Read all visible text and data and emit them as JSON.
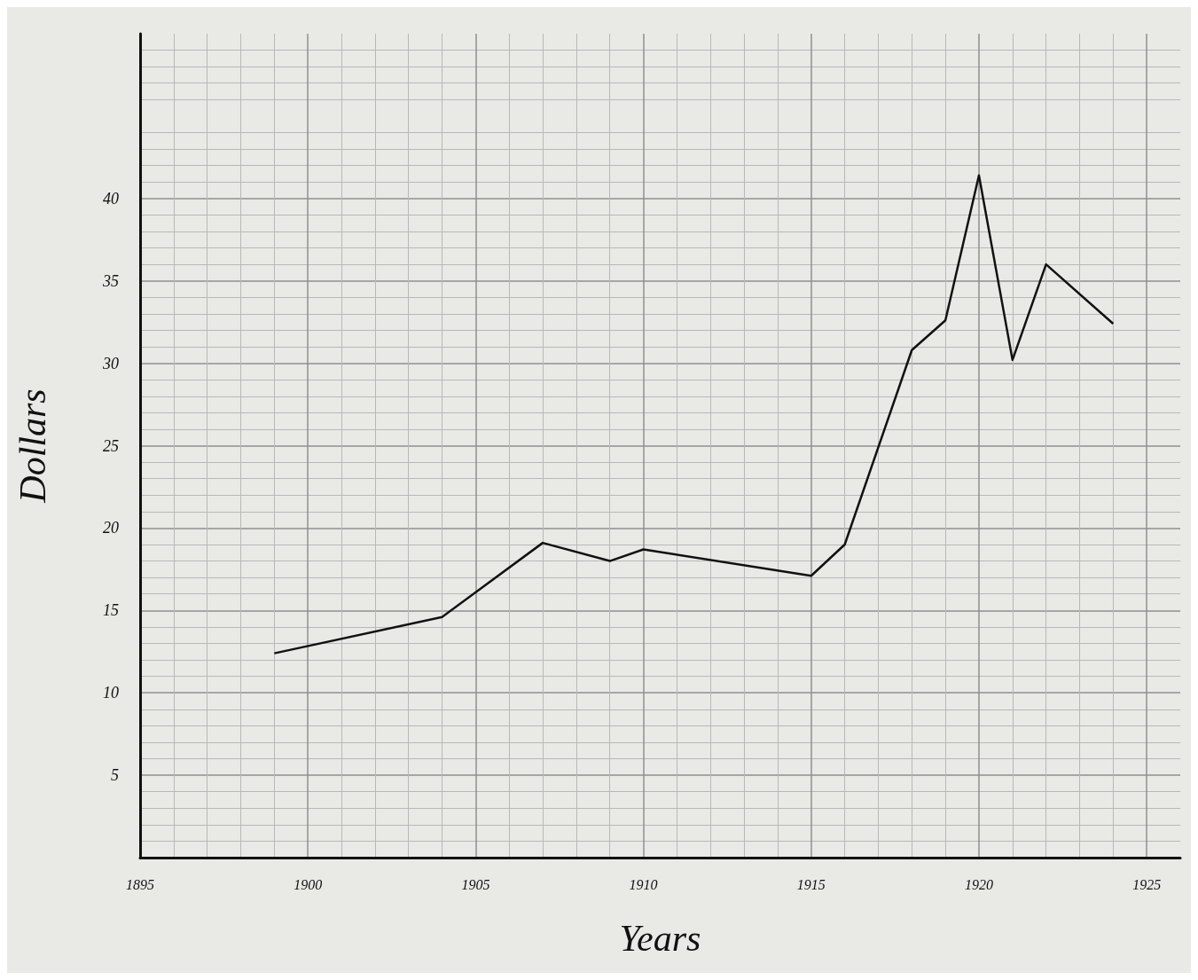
{
  "chart_data": {
    "type": "line",
    "xlabel": "Years",
    "ylabel": "Dollars",
    "x": [
      1899,
      1904,
      1907,
      1909,
      1910,
      1915,
      1916,
      1918,
      1919,
      1920,
      1921,
      1922,
      1924
    ],
    "series": [
      {
        "color": "#111111",
        "values": [
          12.4,
          14.6,
          19.1,
          18.0,
          18.7,
          17.1,
          19.0,
          30.8,
          32.6,
          41.4,
          30.2,
          36.0,
          32.4
        ]
      }
    ],
    "xlim": [
      1895,
      1926
    ],
    "xticks": [
      1895,
      1900,
      1905,
      1910,
      1915,
      1920,
      1925
    ],
    "ylim": [
      0,
      50
    ],
    "yticks": [
      5,
      10,
      15,
      20,
      25,
      30,
      35,
      40
    ],
    "grid": true,
    "marker": "none",
    "line_style": "solid"
  }
}
